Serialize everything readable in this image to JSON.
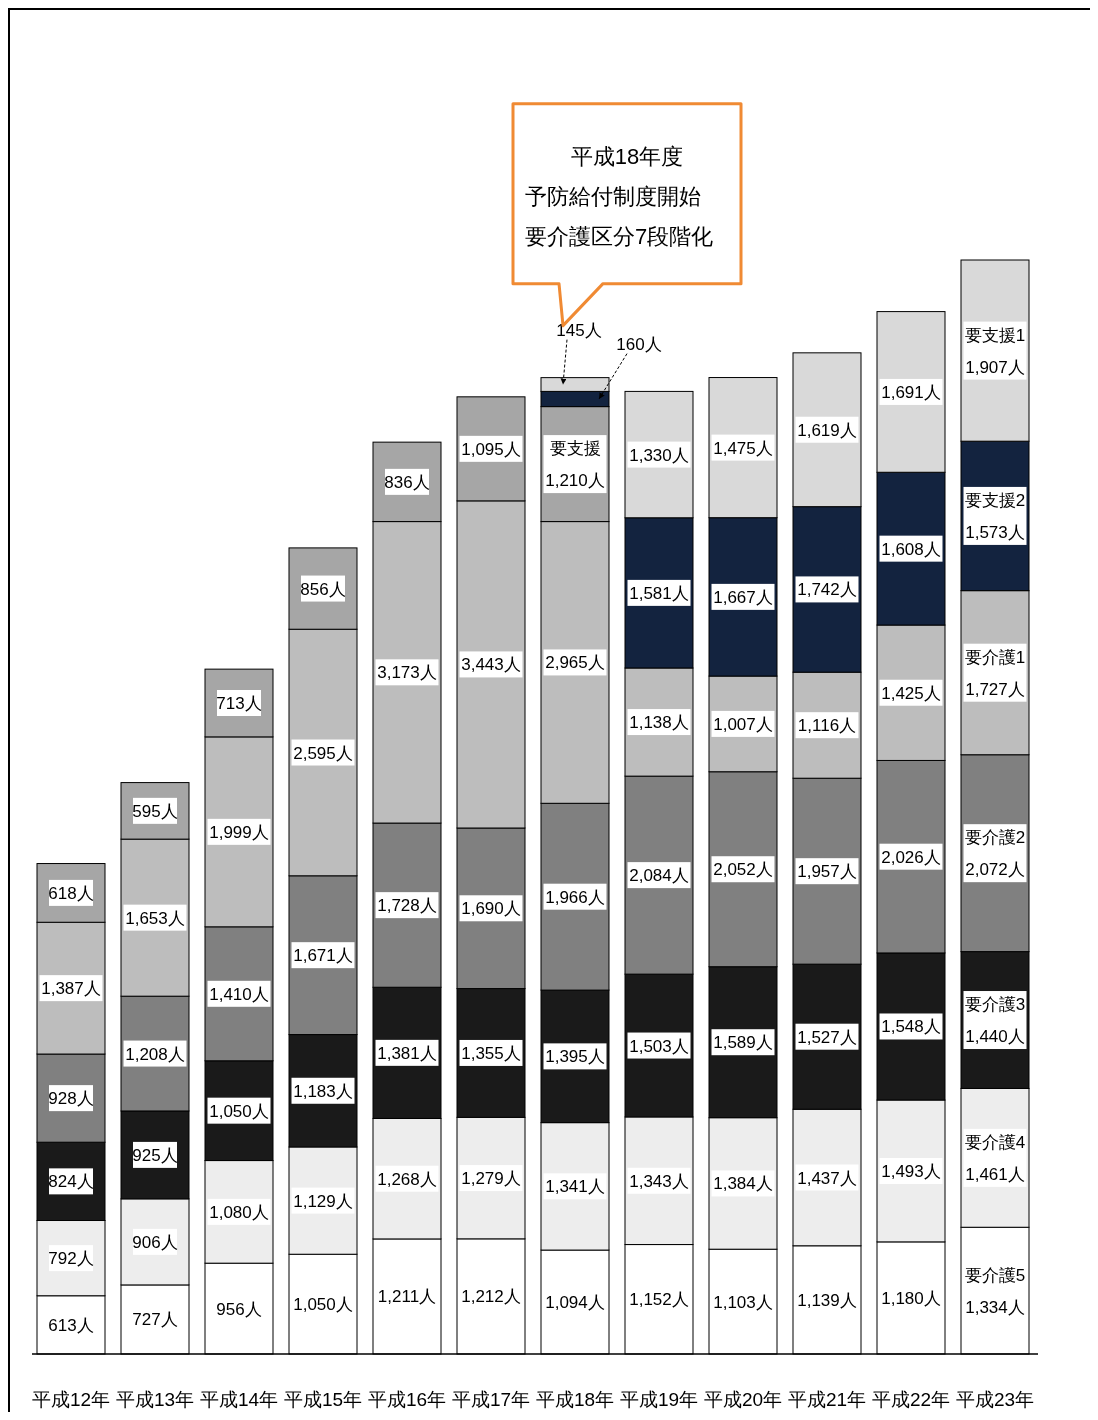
{
  "chart_data": {
    "type": "bar",
    "stacked": true,
    "categories": [
      "平成12年",
      "平成13年",
      "平成14年",
      "平成15年",
      "平成16年",
      "平成17年",
      "平成18年",
      "平成19年",
      "平成20年",
      "平成21年",
      "平成22年",
      "平成23年"
    ],
    "series": [
      {
        "name": "要介護5",
        "color": "#ffffff",
        "values": [
          613,
          727,
          956,
          1050,
          1211,
          1212,
          1094,
          1152,
          1103,
          1139,
          1180,
          1334
        ],
        "value_labels": [
          "613人",
          "727人",
          "956人",
          "1,050人",
          "1,211人",
          "1,212人",
          "1,094人",
          "1,152人",
          "1,103人",
          "1,139人",
          "1,180人",
          "1,334人"
        ]
      },
      {
        "name": "要介護4",
        "color": "#ededed",
        "values": [
          792,
          906,
          1080,
          1129,
          1268,
          1279,
          1341,
          1343,
          1384,
          1437,
          1493,
          1461
        ],
        "value_labels": [
          "792人",
          "906人",
          "1,080人",
          "1,129人",
          "1,268人",
          "1,279人",
          "1,341人",
          "1,343人",
          "1,384人",
          "1,437人",
          "1,493人",
          "1,461人"
        ]
      },
      {
        "name": "要介護3",
        "color": "#1a1a1a",
        "values": [
          824,
          925,
          1050,
          1183,
          1381,
          1355,
          1395,
          1503,
          1589,
          1527,
          1548,
          1440
        ],
        "value_labels": [
          "824人",
          "925人",
          "1,050人",
          "1,183人",
          "1,381人",
          "1,355人",
          "1,395人",
          "1,503人",
          "1,589人",
          "1,527人",
          "1,548人",
          "1,440人"
        ]
      },
      {
        "name": "要介護2",
        "color": "#808080",
        "values": [
          928,
          1208,
          1410,
          1671,
          1728,
          1690,
          1966,
          2084,
          2052,
          1957,
          2026,
          2072
        ],
        "value_labels": [
          "928人",
          "1,208人",
          "1,410人",
          "1,671人",
          "1,728人",
          "1,690人",
          "1,966人",
          "2,084人",
          "2,052人",
          "1,957人",
          "2,026人",
          "2,072人"
        ]
      },
      {
        "name": "要介護1",
        "color": "#bdbdbd",
        "values": [
          1387,
          1653,
          1999,
          2595,
          3173,
          3443,
          2965,
          1138,
          1007,
          1116,
          1425,
          1727
        ],
        "value_labels": [
          "1,387人",
          "1,653人",
          "1,999人",
          "2,595人",
          "3,173人",
          "3,443人",
          "2,965人",
          "1,138人",
          "1,007人",
          "1,116人",
          "1,425人",
          "1,727人"
        ]
      },
      {
        "name": "要支援",
        "color": "#a6a6a6",
        "values": [
          618,
          595,
          713,
          856,
          836,
          1095,
          1210,
          null,
          null,
          null,
          null,
          null
        ],
        "value_labels": [
          "618人",
          "595人",
          "713人",
          "856人",
          "836人",
          "1,095人",
          "1,210人",
          null,
          null,
          null,
          null,
          null
        ]
      },
      {
        "name": "要支援2",
        "color": "#13233f",
        "values": [
          null,
          null,
          null,
          null,
          null,
          null,
          160,
          1581,
          1667,
          1742,
          1608,
          1573
        ],
        "value_labels": [
          null,
          null,
          null,
          null,
          null,
          null,
          "160人",
          "1,581人",
          "1,667人",
          "1,742人",
          "1,608人",
          "1,573人"
        ]
      },
      {
        "name": "要支援1",
        "color": "#d9d9d9",
        "values": [
          null,
          null,
          null,
          null,
          null,
          null,
          145,
          1330,
          1475,
          1619,
          1691,
          1907
        ],
        "value_labels": [
          null,
          null,
          null,
          null,
          null,
          null,
          "145人",
          "1,330人",
          "1,475人",
          "1,619人",
          "1,691人",
          "1,907人"
        ]
      }
    ],
    "annotations": [
      "平成18年度",
      "予防給付制度開始",
      "要介護区分7段階化"
    ]
  }
}
